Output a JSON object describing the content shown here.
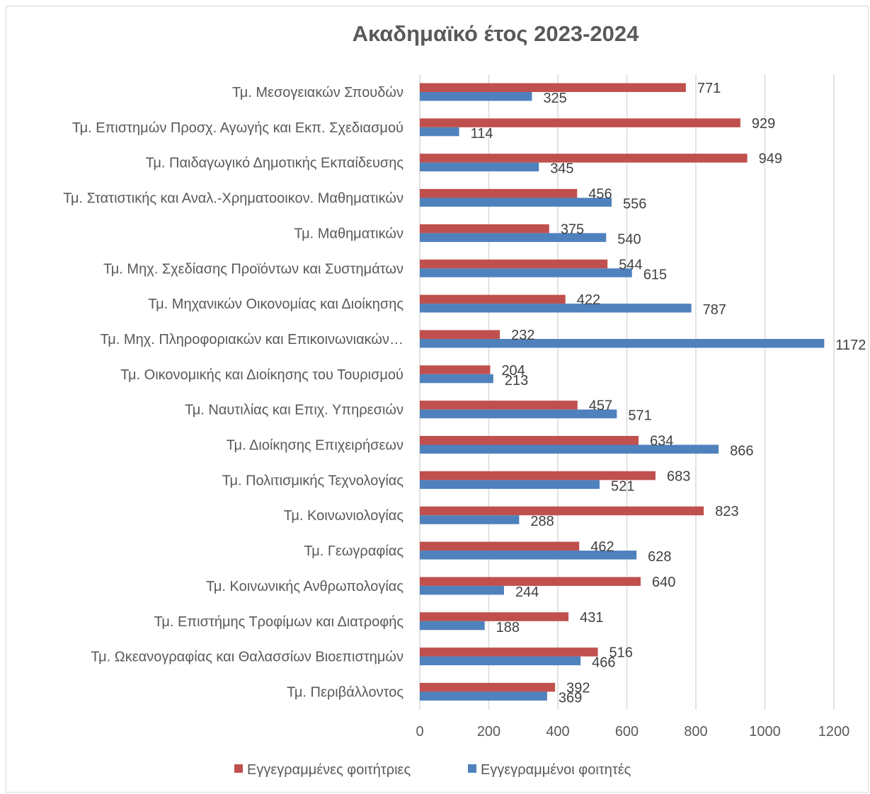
{
  "chart_data": {
    "type": "bar",
    "orientation": "horizontal",
    "title": "Ακαδημαϊκό έτος 2023-2024",
    "xlabel": "",
    "ylabel": "",
    "xlim": [
      0,
      1200
    ],
    "xticks": [
      0,
      200,
      400,
      600,
      800,
      1000,
      1200
    ],
    "grid": "vertical",
    "legend_position": "bottom",
    "categories": [
      "Τμ. Μεσογειακών Σπουδών",
      "Τμ. Επιστημών Προσχ. Αγωγής και Εκπ. Σχεδιασμού",
      "Τμ. Παιδαγωγικό Δημοτικής Εκπαίδευσης",
      "Τμ. Στατιστικής και Αναλ.-Χρηματοοικον. Μαθηματικών",
      "Τμ. Μαθηματικών",
      "Τμ. Μηχ. Σχεδίασης Προϊόντων και Συστημάτων",
      "Τμ. Μηχανικών Οικονομίας και Διοίκησης",
      "Τμ. Μηχ. Πληροφοριακών και Επικοινωνιακών…",
      "Τμ. Οικονομικής και Διοίκησης του Τουρισμού",
      "Τμ. Ναυτιλίας και Επιχ. Υπηρεσιών",
      "Τμ. Διοίκησης Επιχειρήσεων",
      "Τμ. Πολιτισμικής Τεχνολογίας",
      "Τμ. Κοινωνιολογίας",
      "Τμ. Γεωγραφίας",
      "Τμ. Κοινωνικής Ανθρωπολογίας",
      "Τμ. Επιστήμης Τροφίμων και Διατροφής",
      "Τμ. Ωκεανογραφίας και Θαλασσίων Βιοεπιστημών",
      "Τμ. Περιβάλλοντος"
    ],
    "series": [
      {
        "name": "Εγγεγραμμένες φοιτήτριες",
        "color": "#c0504d",
        "values": [
          771,
          929,
          949,
          456,
          375,
          544,
          422,
          232,
          204,
          457,
          634,
          683,
          823,
          462,
          640,
          431,
          516,
          392
        ]
      },
      {
        "name": "Εγγεγραμμένοι φοιτητές",
        "color": "#4f81bd",
        "values": [
          325,
          114,
          345,
          556,
          540,
          615,
          787,
          1172,
          213,
          571,
          866,
          521,
          288,
          628,
          244,
          188,
          466,
          369
        ]
      }
    ]
  }
}
